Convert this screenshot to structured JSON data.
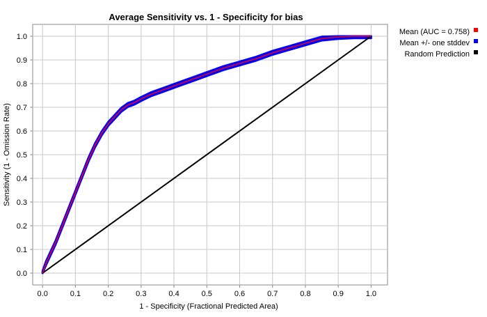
{
  "chart_data": {
    "type": "line",
    "title": "Average Sensitivity vs. 1 - Specificity for bias",
    "xlabel": "1 - Specificity (Fractional Predicted Area)",
    "ylabel": "Sensitivity (1 - Omission Rate)",
    "xlim": [
      -0.03,
      1.05
    ],
    "ylim": [
      -0.05,
      1.05
    ],
    "x_ticks": [
      "0.0",
      "0.1",
      "0.2",
      "0.3",
      "0.4",
      "0.5",
      "0.6",
      "0.7",
      "0.8",
      "0.9",
      "1.0"
    ],
    "y_ticks": [
      "0.0",
      "0.1",
      "0.2",
      "0.3",
      "0.4",
      "0.5",
      "0.6",
      "0.7",
      "0.8",
      "0.9",
      "1.0"
    ],
    "grid": true,
    "legend_position": "right",
    "series": [
      {
        "name": "Mean (AUC = 0.758)",
        "color": "#ff0000",
        "x": [
          0.0,
          0.01,
          0.02,
          0.04,
          0.06,
          0.08,
          0.1,
          0.12,
          0.14,
          0.16,
          0.18,
          0.2,
          0.22,
          0.24,
          0.26,
          0.28,
          0.3,
          0.33,
          0.36,
          0.4,
          0.43,
          0.46,
          0.5,
          0.55,
          0.6,
          0.65,
          0.7,
          0.75,
          0.8,
          0.85,
          0.9,
          0.95,
          1.0
        ],
        "y": [
          0.0,
          0.04,
          0.07,
          0.13,
          0.2,
          0.27,
          0.34,
          0.41,
          0.48,
          0.54,
          0.59,
          0.63,
          0.66,
          0.69,
          0.71,
          0.72,
          0.735,
          0.755,
          0.77,
          0.79,
          0.805,
          0.82,
          0.84,
          0.865,
          0.885,
          0.905,
          0.93,
          0.95,
          0.97,
          0.99,
          0.997,
          1.0,
          1.0
        ]
      },
      {
        "name": "Mean +/- one stddev",
        "color": "#0000ff",
        "spread": 0.008
      },
      {
        "name": "Random Prediction",
        "color": "#000000",
        "x": [
          0.0,
          1.0
        ],
        "y": [
          0.0,
          1.0
        ]
      }
    ]
  }
}
